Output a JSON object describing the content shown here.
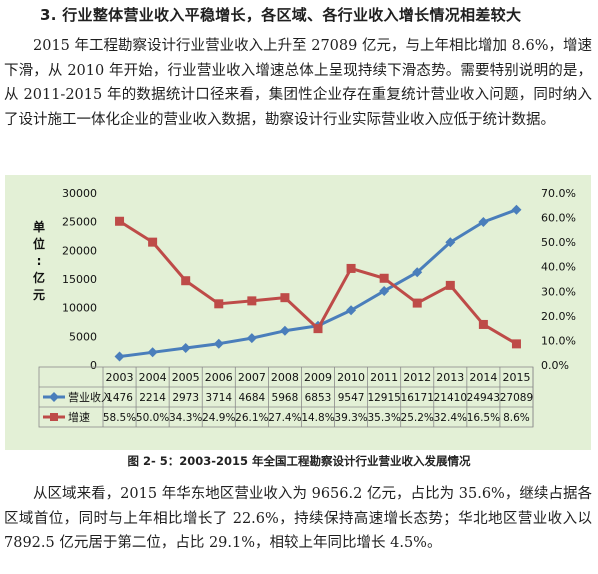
{
  "heading": "3.  行业整体营业收入平稳增长，各区域、各行业收入增长情况相差较大",
  "paragraph1": "2015 年工程勘察设计行业营业收入上升至 27089 亿元，与上年相比增加 8.6%，增速下滑，从 2010 年开始，行业营业收入增速总体上呈现持续下滑态势。需要特别说明的是，从 2011-2015 年的数据统计口径来看，集团性企业存在重复统计营业收入问题，同时纳入了设计施工一体化企业的营业收入数据，勘察设计行业实际营业收入应低于统计数据。",
  "caption": "图 2- 5：2003-2015 年全国工程勘察设计行业营业收入发展情况",
  "paragraph2": "从区域来看，2015 年华东地区营业收入为 9656.2 亿元，占比为 35.6%，继续占据各区域首位，同时与上年相比增长了 22.6%，持续保持高速增长态势；华北地区营业收入以 7892.5 亿元居于第二位，占比 29.1%，相较上年同比增长 4.5%。",
  "chart_data": {
    "type": "line",
    "ylabel": "单位：亿元",
    "categories": [
      "2003",
      "2004",
      "2005",
      "2006",
      "2007",
      "2008",
      "2009",
      "2010",
      "2011",
      "2012",
      "2013",
      "2014",
      "2015"
    ],
    "y_left": {
      "ticks": [
        "0",
        "5000",
        "10000",
        "15000",
        "20000",
        "25000",
        "30000"
      ],
      "range": [
        0,
        30000
      ]
    },
    "y_right": {
      "ticks": [
        "0.0%",
        "10.0%",
        "20.0%",
        "30.0%",
        "40.0%",
        "50.0%",
        "60.0%",
        "70.0%"
      ],
      "range": [
        0,
        70
      ]
    },
    "series": [
      {
        "name": "营业收入",
        "axis": "left",
        "color": "#4a7ebb",
        "values": [
          1476,
          2214,
          2973,
          3714,
          4684,
          5968,
          6853,
          9547,
          12915,
          16171,
          21410,
          24943,
          27089
        ],
        "labels": [
          "1476",
          "2214",
          "2973",
          "3714",
          "4684",
          "5968",
          "6853",
          "9547",
          "12915",
          "16171",
          "21410",
          "24943",
          "27089"
        ]
      },
      {
        "name": "增速",
        "axis": "right",
        "color": "#be4b48",
        "values": [
          58.5,
          50.0,
          34.3,
          24.9,
          26.1,
          27.4,
          14.8,
          39.3,
          35.3,
          25.2,
          32.4,
          16.5,
          8.6
        ],
        "labels": [
          "58.5%",
          "50.0%",
          "34.3%",
          "24.9%",
          "26.1%",
          "27.4%",
          "14.8%",
          "39.3%",
          "35.3%",
          "25.2%",
          "32.4%",
          "16.5%",
          "8.6%"
        ]
      }
    ],
    "grid": false,
    "legend": "data-table-left"
  }
}
